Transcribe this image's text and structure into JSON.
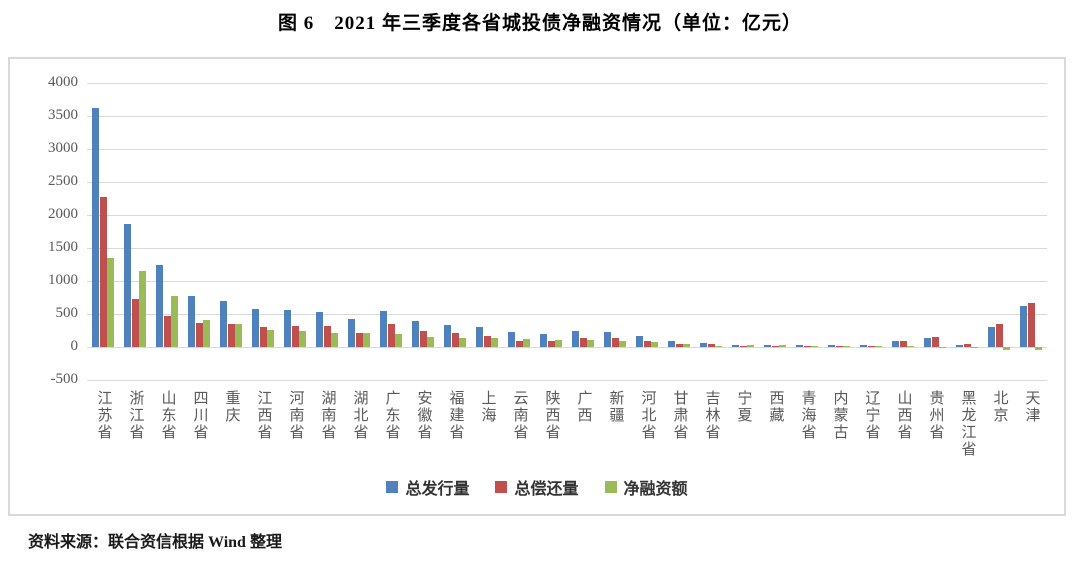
{
  "title": "图 6　2021 年三季度各省城投债净融资情况（单位：亿元）",
  "source": "资料来源：联合资信根据 Wind 整理",
  "chart_data": {
    "type": "bar",
    "title": "图 6　2021 年三季度各省城投债净融资情况（单位：亿元）",
    "xlabel": "",
    "ylabel": "",
    "unit": "亿元",
    "ylim": [
      -500,
      4000
    ],
    "ytick_step": 500,
    "y_ticks": [
      "4000",
      "3500",
      "3000",
      "2500",
      "2000",
      "1500",
      "1000",
      "500",
      "0",
      "-500"
    ],
    "grid": true,
    "legend_position": "bottom",
    "categories": [
      "江苏省",
      "浙江省",
      "山东省",
      "四川省",
      "重庆",
      "江西省",
      "河南省",
      "湖南省",
      "湖北省",
      "广东省",
      "安徽省",
      "福建省",
      "上海",
      "云南省",
      "陕西省",
      "广西",
      "新疆",
      "河北省",
      "甘肃省",
      "吉林省",
      "宁夏",
      "西藏",
      "青海省",
      "内蒙古",
      "辽宁省",
      "山西省",
      "贵州省",
      "黑龙江省",
      "北京",
      "天津"
    ],
    "series": [
      {
        "name": "总发行量",
        "color": "#4F81BD",
        "values": [
          3620,
          1870,
          1250,
          770,
          700,
          570,
          560,
          530,
          420,
          550,
          400,
          340,
          300,
          220,
          190,
          240,
          225,
          160,
          90,
          60,
          35,
          30,
          25,
          25,
          25,
          85,
          135,
          35,
          305,
          615
        ]
      },
      {
        "name": "总偿还量",
        "color": "#C0504D",
        "values": [
          2270,
          720,
          470,
          360,
          350,
          310,
          320,
          320,
          210,
          350,
          250,
          210,
          170,
          95,
          90,
          140,
          135,
          90,
          50,
          45,
          10,
          5,
          15,
          20,
          20,
          85,
          150,
          40,
          350,
          665
        ]
      },
      {
        "name": "净融资额",
        "color": "#9BBB59",
        "values": [
          1350,
          1150,
          780,
          410,
          350,
          260,
          240,
          210,
          210,
          200,
          150,
          130,
          130,
          125,
          100,
          100,
          90,
          70,
          40,
          15,
          25,
          25,
          10,
          5,
          5,
          0,
          -15,
          -5,
          -45,
          -50
        ]
      }
    ]
  }
}
